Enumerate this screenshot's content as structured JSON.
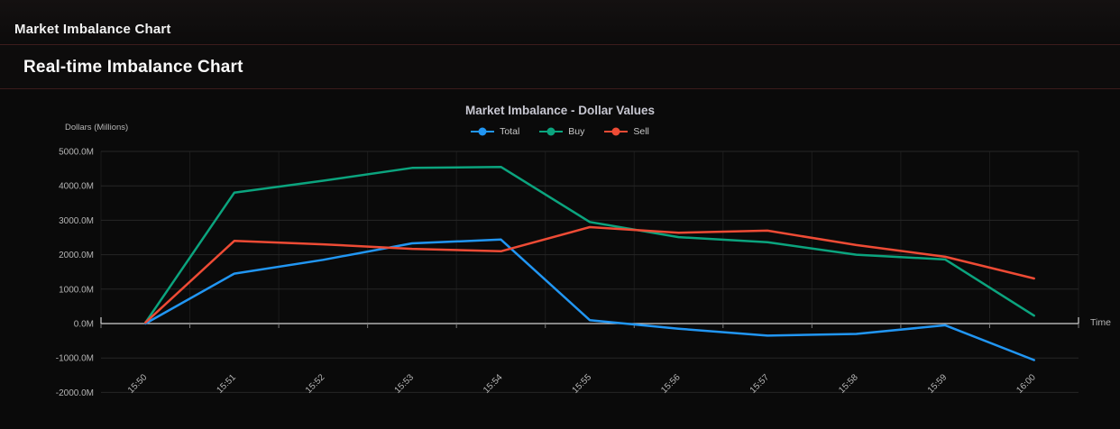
{
  "window": {
    "title": "Market Imbalance Chart"
  },
  "page": {
    "heading": "Real-time Imbalance Chart"
  },
  "chart_data": {
    "type": "line",
    "title": "Market Imbalance - Dollar Values",
    "y_axis_title": "Dollars (Millions)",
    "x_axis_title": "Time",
    "categories": [
      "15:50",
      "15:51",
      "15:52",
      "15:53",
      "15:54",
      "15:55",
      "15:56",
      "15:57",
      "15:58",
      "15:59",
      "16:00"
    ],
    "series": [
      {
        "name": "Total",
        "color": "#2196f3",
        "values": [
          0,
          1450,
          1850,
          2330,
          2440,
          100,
          -150,
          -350,
          -300,
          -50,
          -1060
        ]
      },
      {
        "name": "Buy",
        "color": "#0ba47e",
        "values": [
          30,
          3800,
          4150,
          4520,
          4550,
          2950,
          2510,
          2360,
          2000,
          1860,
          230
        ]
      },
      {
        "name": "Sell",
        "color": "#ee4b35",
        "values": [
          30,
          2400,
          2300,
          2170,
          2100,
          2800,
          2640,
          2700,
          2280,
          1940,
          1310
        ]
      }
    ],
    "ylim": [
      -2000,
      5000
    ],
    "y_tick_step": 1000,
    "y_tick_suffix": "M",
    "y_tick_decimals": 1,
    "grid": true,
    "legend_position": "top-center",
    "legend_labels": [
      "Total",
      "Buy",
      "Sell"
    ]
  },
  "colors": {
    "background": "#0a0a0a",
    "axis_line": "#d2d2d2",
    "grid_line": "#262626",
    "grid_line_vertical": "#1b1b1b",
    "tick_label": "#b5b5b5",
    "divider": "#3c1c1c",
    "total_line": "#2196f3",
    "buy_line": "#0ba47e",
    "sell_line": "#ee4b35"
  }
}
